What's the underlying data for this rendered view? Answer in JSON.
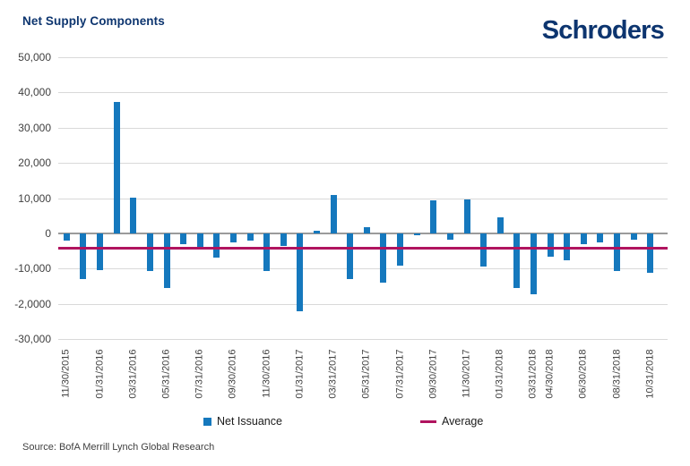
{
  "header": {
    "title": "Net Supply Components",
    "brand": "Schroders"
  },
  "legend": {
    "items": [
      {
        "label": "Net Issuance",
        "marker": "square",
        "color": "#1578bd"
      },
      {
        "label": "Average",
        "marker": "line",
        "color": "#b0135f"
      }
    ]
  },
  "footer": {
    "source": "Source: BofA Merrill Lynch Global Research"
  },
  "colors": {
    "navy": "#0d356f",
    "bar": "#1578bd",
    "average": "#b0135f",
    "grid": "#d9d9d9",
    "zero_axis": "#9b9b9b",
    "axis_text": "#3f3f3f"
  },
  "chart_data": {
    "type": "bar",
    "title": "Net Supply Components",
    "series_name": "Net Issuance",
    "categories": [
      "11/30/2015",
      "12/31/2015",
      "01/31/2016",
      "02/29/2016",
      "03/31/2016",
      "04/30/2016",
      "05/31/2016",
      "06/30/2016",
      "07/31/2016",
      "08/31/2016",
      "09/30/2016",
      "10/31/2016",
      "11/30/2016",
      "12/31/2016",
      "01/31/2017",
      "02/28/2017",
      "03/31/2017",
      "04/30/2017",
      "05/31/2017",
      "06/30/2017",
      "07/31/2017",
      "08/31/2017",
      "09/30/2017",
      "10/31/2017",
      "11/30/2017",
      "12/31/2017",
      "01/31/2018",
      "02/28/2018",
      "03/31/2018",
      "04/30/2018",
      "05/31/2018",
      "06/30/2018",
      "07/31/2018",
      "08/31/2018",
      "09/30/2018",
      "10/31/2018"
    ],
    "values": [
      -2000,
      -13000,
      -10400,
      37300,
      10100,
      -10700,
      -15500,
      -3200,
      -4500,
      -7000,
      -2600,
      -2000,
      -10800,
      -3600,
      -22100,
      800,
      11000,
      -13000,
      1700,
      -14000,
      -9100,
      -600,
      9300,
      -1700,
      9700,
      -9500,
      4500,
      -15500,
      -17400,
      -6600,
      -7700,
      -3100,
      -2500,
      -10700,
      -1700,
      -11100
    ],
    "average_line": -4300,
    "ylim": [
      -30000,
      50000
    ],
    "ytick_step": 10000,
    "ytick_labels": [
      "50,000",
      "40,000",
      "30,000",
      "20,000",
      "10,000",
      "0",
      "-10,000",
      "-2,0000",
      "-30,000"
    ],
    "xtick_labels": [
      "11/30/2015",
      "01/31/2016",
      "03/31/2016",
      "05/31/2016",
      "07/31/2016",
      "09/30/2016",
      "11/30/2016",
      "01/31/2017",
      "03/31/2017",
      "05/31/2017",
      "07/31/2017",
      "09/30/2017",
      "11/30/2017",
      "01/31/2018",
      "03/31/2018",
      "04/30/2018",
      "06/30/2018",
      "08/31/2018",
      "10/31/2018"
    ],
    "xtick_indices": [
      0,
      2,
      4,
      6,
      8,
      10,
      12,
      14,
      16,
      18,
      20,
      22,
      24,
      26,
      28,
      29,
      31,
      33,
      35
    ],
    "grid": true,
    "legend_position": "bottom"
  }
}
